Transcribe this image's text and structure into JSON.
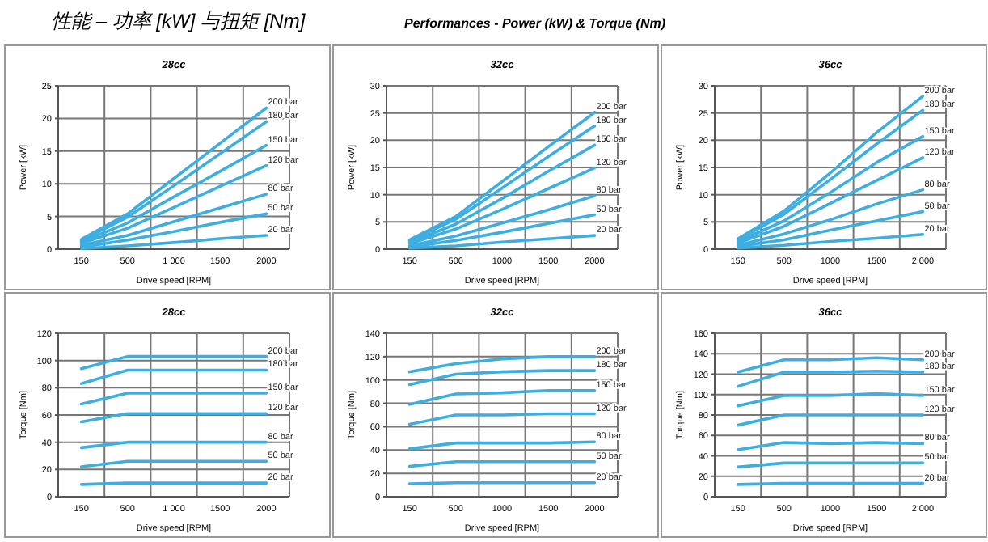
{
  "chart_data": [
    {
      "type": "line",
      "title": "28cc",
      "xlabel": "Drive speed [RPM]",
      "ylabel": "Power [kW]",
      "annotations": [
        "性能 – 功率 [kW] 与扭矩 [Nm]",
        "Performances - Power (kW) & Torque (Nm)"
      ],
      "categories": [
        "150",
        "500",
        "1 000",
        "1500",
        "2000"
      ],
      "ylim": [
        0,
        25
      ],
      "yticks": [
        0,
        5,
        10,
        15,
        20,
        25
      ],
      "grid": true,
      "legend": false,
      "series": [
        {
          "name": "200 bar",
          "color": "#3daee2",
          "values": [
            1.5,
            5.4,
            10.8,
            16.2,
            21.6
          ]
        },
        {
          "name": "180 bar",
          "color": "#3daee2",
          "values": [
            1.3,
            4.9,
            9.7,
            14.6,
            19.5
          ]
        },
        {
          "name": "150 bar",
          "color": "#3daee2",
          "values": [
            1.1,
            4.0,
            8.0,
            11.9,
            15.9
          ]
        },
        {
          "name": "120 bar",
          "color": "#3daee2",
          "values": [
            0.9,
            3.2,
            6.4,
            9.6,
            12.8
          ]
        },
        {
          "name": "80 bar",
          "color": "#3daee2",
          "values": [
            0.6,
            2.1,
            4.2,
            6.3,
            8.4
          ]
        },
        {
          "name": "50 bar",
          "color": "#3daee2",
          "values": [
            0.3,
            1.4,
            2.7,
            4.1,
            5.4
          ]
        },
        {
          "name": "20 bar",
          "color": "#3daee2",
          "values": [
            0.1,
            0.5,
            1.0,
            1.6,
            2.1
          ]
        }
      ]
    },
    {
      "type": "line",
      "title": "32cc",
      "xlabel": "Drive speed [RPM]",
      "ylabel": "Power [kW]",
      "categories": [
        "150",
        "500",
        "1000",
        "1500",
        "2000"
      ],
      "ylim": [
        0,
        30
      ],
      "yticks": [
        0,
        5,
        10,
        15,
        20,
        25,
        30
      ],
      "grid": true,
      "legend": false,
      "series": [
        {
          "name": "200 bar",
          "color": "#3daee2",
          "values": [
            1.7,
            6.0,
            12.4,
            18.8,
            25.1
          ]
        },
        {
          "name": "180 bar",
          "color": "#3daee2",
          "values": [
            1.5,
            5.5,
            11.2,
            17.0,
            22.6
          ]
        },
        {
          "name": "150 bar",
          "color": "#3daee2",
          "values": [
            1.2,
            4.6,
            9.3,
            14.3,
            19.1
          ]
        },
        {
          "name": "120 bar",
          "color": "#3daee2",
          "values": [
            1.0,
            3.7,
            7.3,
            11.1,
            14.9
          ]
        },
        {
          "name": "80 bar",
          "color": "#3daee2",
          "values": [
            0.6,
            2.4,
            4.8,
            7.2,
            9.8
          ]
        },
        {
          "name": "50 bar",
          "color": "#3daee2",
          "values": [
            0.4,
            1.6,
            3.1,
            4.7,
            6.3
          ]
        },
        {
          "name": "20 bar",
          "color": "#3daee2",
          "values": [
            0.2,
            0.6,
            1.3,
            1.9,
            2.5
          ]
        }
      ]
    },
    {
      "type": "line",
      "title": "36cc",
      "xlabel": "Drive speed [RPM]",
      "ylabel": "Power [kW]",
      "categories": [
        "150",
        "500",
        "1000",
        "1500",
        "2 000"
      ],
      "ylim": [
        0,
        30
      ],
      "yticks": [
        0,
        5,
        10,
        15,
        20,
        25,
        30
      ],
      "grid": true,
      "legend": false,
      "series": [
        {
          "name": "200 bar",
          "color": "#3daee2",
          "values": [
            1.9,
            7.0,
            14.0,
            21.4,
            28.1
          ]
        },
        {
          "name": "180 bar",
          "color": "#3daee2",
          "values": [
            1.7,
            6.4,
            12.8,
            19.3,
            25.5
          ]
        },
        {
          "name": "150 bar",
          "color": "#3daee2",
          "values": [
            1.4,
            5.2,
            10.4,
            15.9,
            20.7
          ]
        },
        {
          "name": "120 bar",
          "color": "#3daee2",
          "values": [
            1.1,
            4.2,
            8.4,
            12.6,
            16.8
          ]
        },
        {
          "name": "80 bar",
          "color": "#3daee2",
          "values": [
            0.7,
            2.8,
            5.4,
            8.3,
            10.9
          ]
        },
        {
          "name": "50 bar",
          "color": "#3daee2",
          "values": [
            0.5,
            1.7,
            3.5,
            5.2,
            6.9
          ]
        },
        {
          "name": "20 bar",
          "color": "#3daee2",
          "values": [
            0.2,
            0.7,
            1.4,
            2.0,
            2.7
          ]
        }
      ]
    },
    {
      "type": "line",
      "title": "28cc",
      "xlabel": "Drive speed [RPM]",
      "ylabel": "Torque [Nm]",
      "categories": [
        "150",
        "500",
        "1 000",
        "1500",
        "2000"
      ],
      "ylim": [
        0,
        120
      ],
      "yticks": [
        0,
        20,
        40,
        60,
        80,
        100,
        120
      ],
      "grid": true,
      "legend": false,
      "series": [
        {
          "name": "200 bar",
          "color": "#3daee2",
          "values": [
            94,
            103,
            103,
            103,
            103
          ]
        },
        {
          "name": "180 bar",
          "color": "#3daee2",
          "values": [
            83,
            93,
            93,
            93,
            93
          ]
        },
        {
          "name": "150 bar",
          "color": "#3daee2",
          "values": [
            68,
            76,
            76,
            76,
            76
          ]
        },
        {
          "name": "120 bar",
          "color": "#3daee2",
          "values": [
            55,
            61,
            61,
            61,
            61
          ]
        },
        {
          "name": "80 bar",
          "color": "#3daee2",
          "values": [
            36,
            40,
            40,
            40,
            40
          ]
        },
        {
          "name": "50 bar",
          "color": "#3daee2",
          "values": [
            22,
            26,
            26,
            26,
            26
          ]
        },
        {
          "name": "20 bar",
          "color": "#3daee2",
          "values": [
            9,
            10,
            10,
            10,
            10
          ]
        }
      ]
    },
    {
      "type": "line",
      "title": "32cc",
      "xlabel": "Drive speed [RPM]",
      "ylabel": "Torque [Nm]",
      "categories": [
        "150",
        "500",
        "1000",
        "1500",
        "2000"
      ],
      "ylim": [
        0,
        140
      ],
      "yticks": [
        0,
        20,
        40,
        60,
        80,
        100,
        120,
        140
      ],
      "grid": true,
      "legend": false,
      "series": [
        {
          "name": "200 bar",
          "color": "#3daee2",
          "values": [
            107,
            114,
            118,
            120,
            120
          ]
        },
        {
          "name": "180 bar",
          "color": "#3daee2",
          "values": [
            96,
            105,
            107,
            108,
            108
          ]
        },
        {
          "name": "150 bar",
          "color": "#3daee2",
          "values": [
            79,
            88,
            89,
            91,
            91
          ]
        },
        {
          "name": "120 bar",
          "color": "#3daee2",
          "values": [
            62,
            70,
            70,
            71,
            71
          ]
        },
        {
          "name": "80 bar",
          "color": "#3daee2",
          "values": [
            41,
            46,
            46,
            46,
            47
          ]
        },
        {
          "name": "50 bar",
          "color": "#3daee2",
          "values": [
            26,
            30,
            30,
            30,
            30
          ]
        },
        {
          "name": "20 bar",
          "color": "#3daee2",
          "values": [
            11,
            12,
            12,
            12,
            12
          ]
        }
      ]
    },
    {
      "type": "line",
      "title": "36cc",
      "xlabel": "Drive speed [RPM]",
      "ylabel": "Torque [Nm]",
      "categories": [
        "150",
        "500",
        "1000",
        "1500",
        "2 000"
      ],
      "ylim": [
        0,
        160
      ],
      "yticks": [
        0,
        20,
        40,
        60,
        80,
        100,
        120,
        140,
        160
      ],
      "grid": true,
      "legend": false,
      "series": [
        {
          "name": "200 bar",
          "color": "#3daee2",
          "values": [
            122,
            134,
            134,
            136,
            134
          ]
        },
        {
          "name": "180 bar",
          "color": "#3daee2",
          "values": [
            108,
            122,
            122,
            123,
            122
          ]
        },
        {
          "name": "150 bar",
          "color": "#3daee2",
          "values": [
            89,
            99,
            99,
            101,
            99
          ]
        },
        {
          "name": "120 bar",
          "color": "#3daee2",
          "values": [
            70,
            80,
            80,
            80,
            80
          ]
        },
        {
          "name": "80 bar",
          "color": "#3daee2",
          "values": [
            46,
            53,
            52,
            53,
            52
          ]
        },
        {
          "name": "50 bar",
          "color": "#3daee2",
          "values": [
            29,
            33,
            33,
            33,
            33
          ]
        },
        {
          "name": "20 bar",
          "color": "#3daee2",
          "values": [
            12,
            13,
            13,
            13,
            13
          ]
        }
      ]
    }
  ]
}
